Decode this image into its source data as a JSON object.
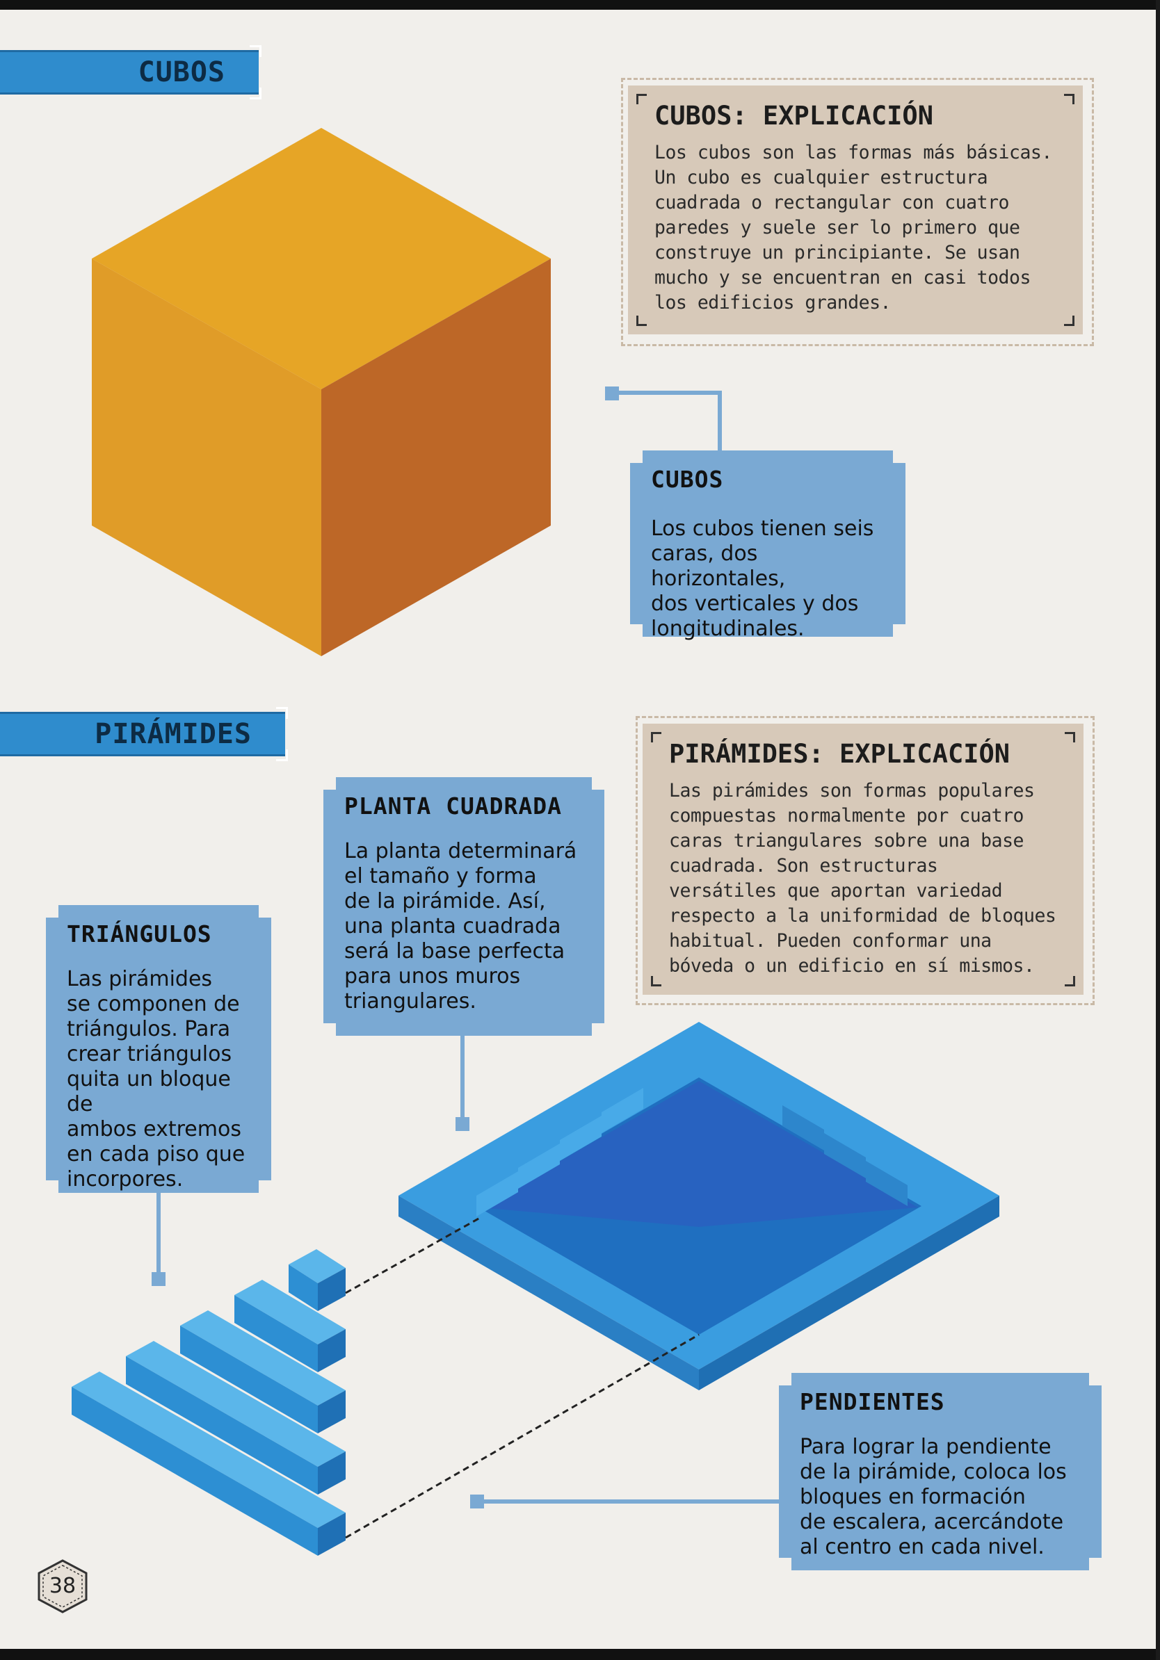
{
  "sections": {
    "cubes": {
      "tab_label": "CUBOS"
    },
    "pyramids": {
      "tab_label": "PIRÁMIDES"
    }
  },
  "cubes_explanation": {
    "title": "CUBOS: EXPLICACIÓN",
    "lines": [
      "Los cubos son las formas más básicas.",
      "Un cubo es cualquier estructura",
      "cuadrada o rectangular con cuatro",
      "paredes y suele ser lo primero que",
      "construye un principiante. Se usan",
      "mucho y se encuentran en casi todos",
      "los edificios grandes."
    ]
  },
  "cubes_box": {
    "title": "CUBOS",
    "lines": [
      "Los cubos tienen seis",
      "caras, dos horizontales,",
      "dos verticales y dos",
      "longitudinales."
    ]
  },
  "pyramids_explanation": {
    "title": "PIRÁMIDES: EXPLICACIÓN",
    "lines": [
      "Las pirámides son formas populares",
      "compuestas normalmente por cuatro",
      "caras triangulares sobre una base",
      "cuadrada. Son estructuras",
      "versátiles que aportan variedad",
      "respecto a la uniformidad de bloques",
      "habitual. Pueden conformar una",
      "bóveda o un edificio en sí mismos."
    ]
  },
  "square_plan_box": {
    "title": "PLANTA CUADRADA",
    "lines": [
      "La planta determinará",
      "el tamaño y forma",
      "de la pirámide. Así,",
      "una planta cuadrada",
      "será la base perfecta",
      "para unos muros",
      "triangulares."
    ]
  },
  "triangles_box": {
    "title": "TRIÁNGULOS",
    "lines": [
      "Las pirámides",
      "se componen de",
      "triángulos. Para",
      "crear triángulos",
      "quita un bloque de",
      "ambos extremos",
      "en cada piso que",
      "incorpores."
    ]
  },
  "slopes_box": {
    "title": "PENDIENTES",
    "lines": [
      "Para lograr la pendiente",
      "de la pirámide, coloca los",
      "bloques en formación",
      "de escalera, acercándote",
      "al centro en cada nivel."
    ]
  },
  "page_number": "38",
  "colors": {
    "tab_blue": "#2f8ccd",
    "box_blue": "#7aa9d3",
    "panel_beige": "#d7c9b9",
    "cube_top": "#e6a526",
    "cube_left": "#e09c28",
    "cube_right": "#bd6727",
    "pyramid_blue": "#3a9de0"
  }
}
